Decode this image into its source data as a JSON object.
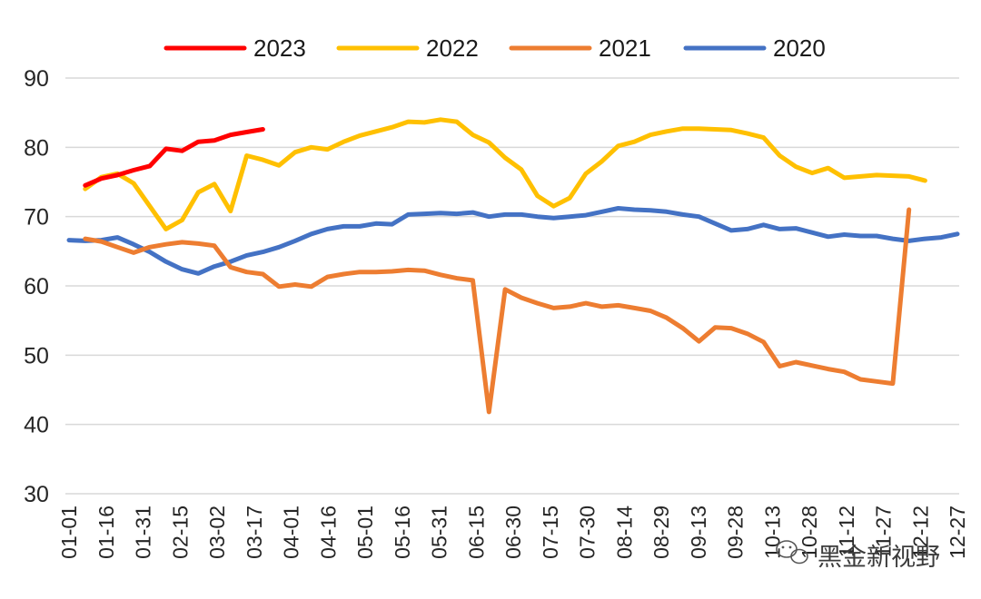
{
  "chart_data": {
    "type": "line",
    "title": "",
    "xlabel": "",
    "ylabel": "",
    "ylim": [
      30,
      90
    ],
    "yticks": [
      30,
      40,
      50,
      60,
      70,
      80,
      90
    ],
    "grid": "horizontal",
    "legend_position": "top",
    "x_tick_labels": [
      "01-01",
      "01-16",
      "01-31",
      "02-15",
      "03-02",
      "03-17",
      "04-01",
      "04-16",
      "05-01",
      "05-16",
      "05-31",
      "06-15",
      "06-30",
      "07-15",
      "07-30",
      "08-14",
      "08-29",
      "09-13",
      "09-28",
      "10-13",
      "10-28",
      "11-12",
      "11-27",
      "12-12",
      "12-27"
    ],
    "series": [
      {
        "name": "2023",
        "color": "#ff0000",
        "values": [
          null,
          74.5,
          75.5,
          76.0,
          76.7,
          77.3,
          79.8,
          79.5,
          80.8,
          81.0,
          81.8,
          82.2,
          82.6
        ]
      },
      {
        "name": "2022",
        "color": "#ffc000",
        "values": [
          null,
          74.0,
          75.7,
          76.2,
          74.8,
          71.5,
          68.2,
          69.5,
          73.5,
          74.7,
          70.8,
          78.8,
          78.2,
          77.4,
          79.3,
          80.0,
          79.7,
          80.8,
          81.7,
          82.3,
          82.9,
          83.7,
          83.6,
          84.0,
          83.7,
          81.8,
          80.7,
          78.5,
          76.8,
          73.0,
          71.5,
          72.7,
          76.2,
          78.0,
          80.2,
          80.8,
          81.8,
          82.3,
          82.7,
          82.7,
          82.6,
          82.5,
          82.0,
          81.4,
          78.8,
          77.2,
          76.3,
          77.0,
          75.6,
          75.8,
          76.0,
          75.9,
          75.8,
          75.2
        ]
      },
      {
        "name": "2021",
        "color": "#ed7d31",
        "values": [
          null,
          66.8,
          66.4,
          65.6,
          64.8,
          65.6,
          66.0,
          66.3,
          66.1,
          65.8,
          62.7,
          62.0,
          61.7,
          59.9,
          60.2,
          59.9,
          61.3,
          61.7,
          62.0,
          62.0,
          62.1,
          62.3,
          62.2,
          61.6,
          61.1,
          60.8,
          41.8,
          59.5,
          58.3,
          57.5,
          56.8,
          57.0,
          57.5,
          57.0,
          57.2,
          56.8,
          56.4,
          55.4,
          53.9,
          52.0,
          54.0,
          53.9,
          53.1,
          51.9,
          48.4,
          49.0,
          48.5,
          48.0,
          47.6,
          46.5,
          46.2,
          45.9,
          71.0
        ]
      },
      {
        "name": "2020",
        "color": "#4472c4",
        "values": [
          66.6,
          66.5,
          66.6,
          67.0,
          66.0,
          64.9,
          63.5,
          62.4,
          61.8,
          62.8,
          63.5,
          64.4,
          64.9,
          65.6,
          66.5,
          67.5,
          68.2,
          68.6,
          68.6,
          69.0,
          68.9,
          70.3,
          70.4,
          70.5,
          70.4,
          70.6,
          70.0,
          70.3,
          70.3,
          70.0,
          69.8,
          70.0,
          70.2,
          70.7,
          71.2,
          71.0,
          70.9,
          70.7,
          70.3,
          70.0,
          69.0,
          68.0,
          68.2,
          68.8,
          68.2,
          68.3,
          67.7,
          67.1,
          67.4,
          67.2,
          67.2,
          66.8,
          66.5,
          66.8,
          67.0,
          67.5
        ]
      }
    ]
  },
  "watermark": {
    "text": "黑金新视野",
    "icon": "wechat-icon"
  }
}
